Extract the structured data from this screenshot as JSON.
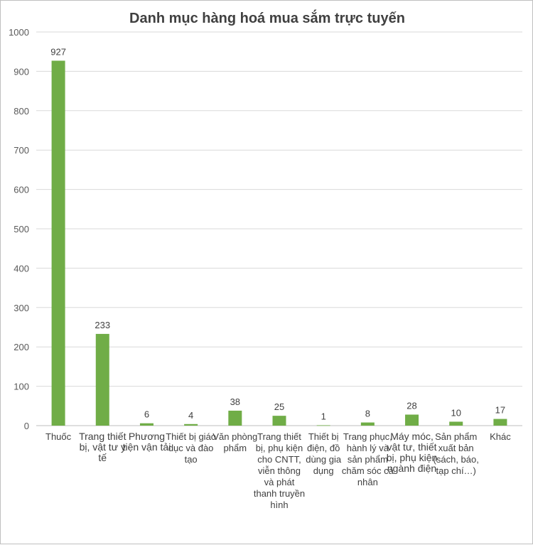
{
  "chart_data": {
    "type": "bar",
    "title": "Danh mục hàng hoá mua sắm trực tuyến",
    "categories": [
      "Thuốc",
      "Trang thiết bị, vật tư y tế",
      "Phương tiện vận tải",
      "Thiết bị giáo dục và đào tạo",
      "Văn phòng phẩm",
      "Trang thiết bị, phụ kiện cho CNTT, viễn thông và phát thanh truyền hình",
      "Thiết bị điện, đồ dùng gia dụng",
      "Trang phục, hành lý và sản phẩm chăm sóc cá nhân",
      "Máy móc, vật tư, thiết bị, phụ kiện ngành điện",
      "Sản phẩm xuất bản (sách, báo, tạp chí…)",
      "Khác"
    ],
    "values": [
      927,
      233,
      6,
      4,
      38,
      25,
      1,
      8,
      28,
      10,
      17
    ],
    "ylim": [
      0,
      1000
    ],
    "yticks": [
      0,
      100,
      200,
      300,
      400,
      500,
      600,
      700,
      800,
      900,
      1000
    ],
    "grid": true,
    "legend": "none",
    "bar_color": "#70ad47",
    "xlabel": "",
    "ylabel": ""
  }
}
